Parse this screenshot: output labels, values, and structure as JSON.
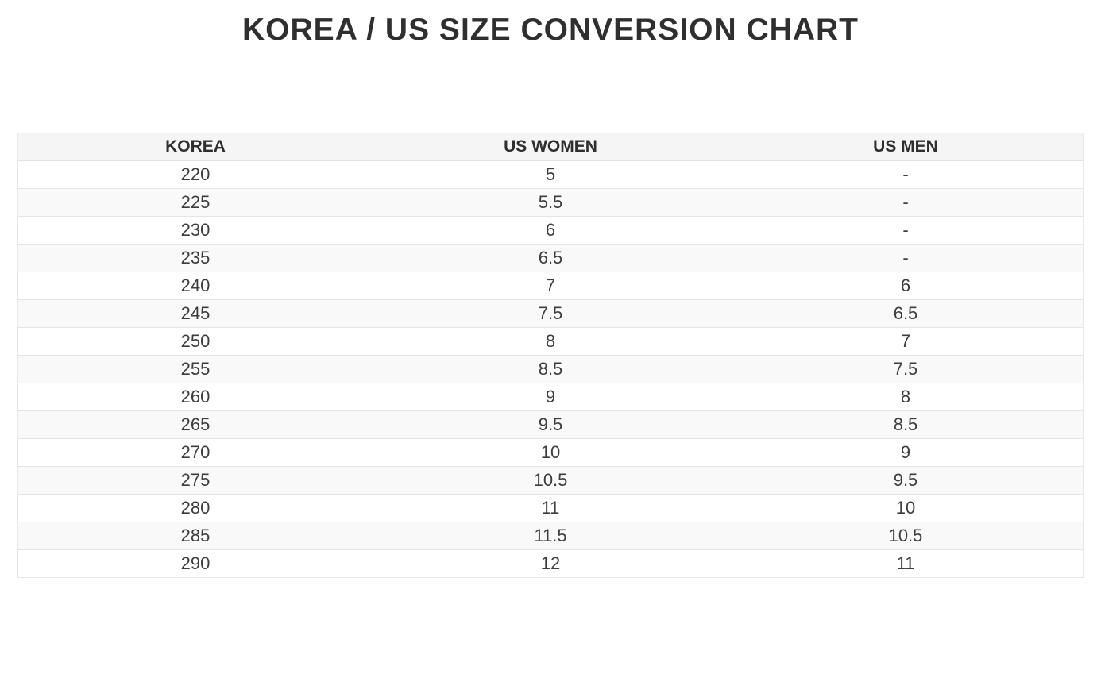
{
  "page": {
    "title": "KOREA / US SIZE CONVERSION CHART"
  },
  "colors": {
    "title_text": "#2f2f2f",
    "cell_text": "#3d3d3d",
    "header_background": "#f5f5f5",
    "alt_row_background": "#f9f9f9",
    "row_background": "#ffffff",
    "border_horizontal": "#e5e5e5",
    "border_vertical": "#ededed"
  },
  "chart_data": {
    "type": "table",
    "title": "KOREA / US SIZE CONVERSION CHART",
    "columns": [
      "KOREA",
      "US WOMEN",
      "US MEN"
    ],
    "rows": [
      [
        "220",
        "5",
        "-"
      ],
      [
        "225",
        "5.5",
        "-"
      ],
      [
        "230",
        "6",
        "-"
      ],
      [
        "235",
        "6.5",
        "-"
      ],
      [
        "240",
        "7",
        "6"
      ],
      [
        "245",
        "7.5",
        "6.5"
      ],
      [
        "250",
        "8",
        "7"
      ],
      [
        "255",
        "8.5",
        "7.5"
      ],
      [
        "260",
        "9",
        "8"
      ],
      [
        "265",
        "9.5",
        "8.5"
      ],
      [
        "270",
        "10",
        "9"
      ],
      [
        "275",
        "10.5",
        "9.5"
      ],
      [
        "280",
        "11",
        "10"
      ],
      [
        "285",
        "11.5",
        "10.5"
      ],
      [
        "290",
        "12",
        "11"
      ]
    ],
    "layout": {
      "header_style": "bold on light gray",
      "zebra_striping": true,
      "text_alignment": "center",
      "column_width_ratio": [
        0.334,
        0.333,
        0.333
      ]
    }
  }
}
